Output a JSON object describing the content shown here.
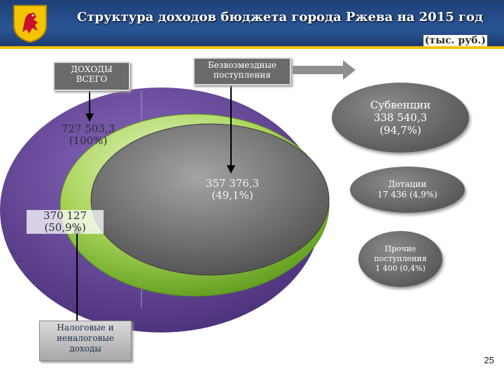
{
  "header": {
    "title": "Структура доходов бюджета города Ржева на 2015 год",
    "units": "(тыс. руб.)",
    "colors": {
      "bar": "#2a5596",
      "stripe": "#f2c200"
    }
  },
  "labels": {
    "total_box_line1": "ДОХОДЫ",
    "total_box_line2": "ВСЕГО",
    "transfers_box_line1": "Безвозмездные",
    "transfers_box_line2": "поступления",
    "tax_box_line1": "Налоговые и",
    "tax_box_line2": "неналоговые",
    "tax_box_line3": "доходы",
    "total_value": "727 503,3",
    "total_share": "(100%)",
    "transfers_value": "357 376,3",
    "transfers_share": "(49,1%)",
    "tax_value": "370 127",
    "tax_share": "(50,9%)"
  },
  "breakdown": [
    {
      "line1": "Субвенции",
      "line2": "338 540,3",
      "line3": "(94,7%)"
    },
    {
      "line1": "Дотации",
      "line2": "17 436 (4,9%)"
    },
    {
      "line1": "Прочие",
      "line2": "поступления",
      "line3": "1 400 (0,4%)"
    }
  ],
  "colors": {
    "total": "#6b4c9a",
    "tax": "#8cc63f",
    "transfers": "#7a7a7a"
  },
  "page_number": "25"
}
